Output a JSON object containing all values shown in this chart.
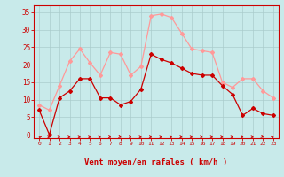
{
  "x": [
    0,
    1,
    2,
    3,
    4,
    5,
    6,
    7,
    8,
    9,
    10,
    11,
    12,
    13,
    14,
    15,
    16,
    17,
    18,
    19,
    20,
    21,
    22,
    23
  ],
  "avg_wind": [
    7,
    0,
    10.5,
    12.5,
    16,
    16,
    10.5,
    10.5,
    8.5,
    9.5,
    13,
    23,
    21.5,
    20.5,
    19,
    17.5,
    17,
    17,
    14,
    11.5,
    5.5,
    7.5,
    6,
    5.5
  ],
  "gust_wind": [
    8.5,
    7,
    14,
    21,
    24.5,
    20.5,
    17,
    23.5,
    23,
    17,
    19.5,
    34,
    34.5,
    33.5,
    29,
    24.5,
    24,
    23.5,
    15,
    13.5,
    16,
    16,
    12.5,
    10.5
  ],
  "avg_color": "#cc0000",
  "gust_color": "#ff9999",
  "bg_color": "#c8eaea",
  "grid_color": "#aacccc",
  "xlabel": "Vent moyen/en rafales ( km/h )",
  "xlabel_color": "#cc0000",
  "ylabel_color": "#cc0000",
  "yticks": [
    0,
    5,
    10,
    15,
    20,
    25,
    30,
    35
  ],
  "ylim": [
    -1,
    37
  ],
  "xlim": [
    -0.5,
    23.5
  ]
}
